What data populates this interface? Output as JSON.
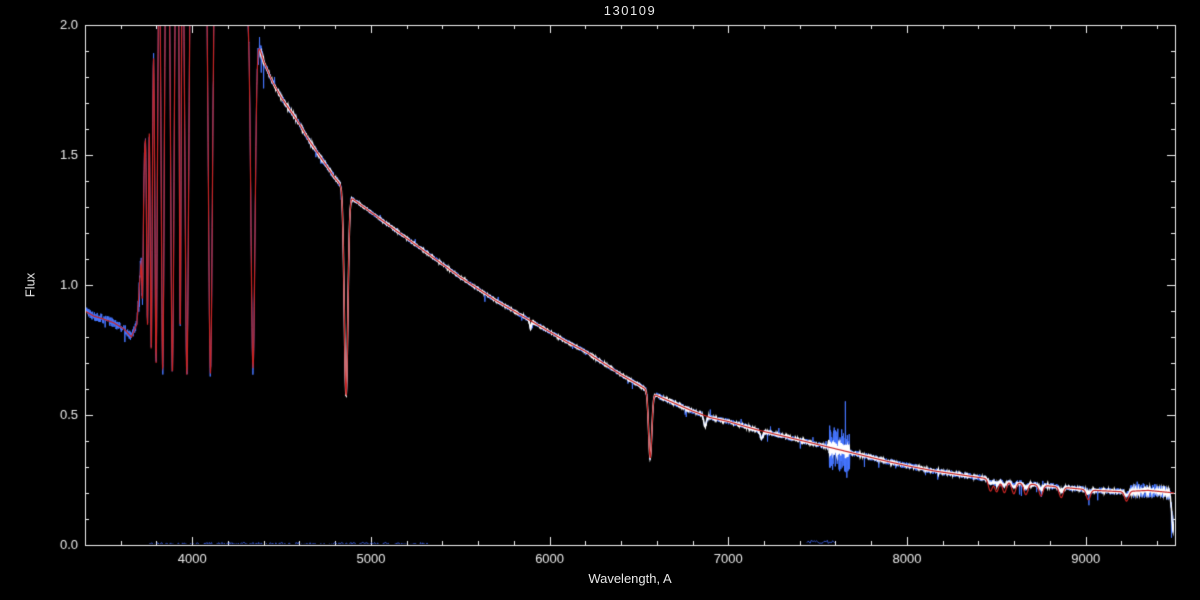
{
  "chart_data": {
    "type": "line",
    "title": "130109",
    "xlabel": "Wavelength, A",
    "ylabel": "Flux",
    "xlim": [
      3400,
      9500
    ],
    "ylim": [
      0.0,
      2.0
    ],
    "xticks": [
      4000,
      5000,
      6000,
      7000,
      8000,
      9000
    ],
    "yticks": [
      0.0,
      0.5,
      1.0,
      1.5,
      2.0
    ],
    "x_minor_step": 200,
    "y_minor_step": 0.1,
    "background": "#000000",
    "axis_color": "#f2f2f2",
    "text_color": "#e8e8e8",
    "series": [
      {
        "name": "observed-spectrum-noisy",
        "color": "#4575ff",
        "role": "observed_noise"
      },
      {
        "name": "observed-spectrum-core",
        "color": "#ffffff",
        "role": "observed_core"
      },
      {
        "name": "model-fit",
        "color": "#c92525",
        "role": "model"
      }
    ],
    "continuum_points": [
      [
        3400,
        0.9
      ],
      [
        3450,
        0.88
      ],
      [
        3500,
        0.87
      ],
      [
        3560,
        0.855
      ],
      [
        3620,
        0.83
      ],
      [
        3660,
        0.8
      ],
      [
        3690,
        0.85
      ],
      [
        3710,
        1.05
      ],
      [
        3730,
        1.45
      ],
      [
        3750,
        1.85
      ],
      [
        3775,
        2.15
      ],
      [
        3800,
        2.35
      ],
      [
        3850,
        2.45
      ],
      [
        3950,
        2.5
      ],
      [
        4050,
        2.45
      ],
      [
        4150,
        2.38
      ],
      [
        4250,
        2.24
      ],
      [
        4320,
        2.05
      ],
      [
        4360,
        1.95
      ],
      [
        4400,
        1.86
      ],
      [
        4450,
        1.78
      ],
      [
        4500,
        1.72
      ],
      [
        4550,
        1.67
      ],
      [
        4600,
        1.62
      ],
      [
        4650,
        1.56
      ],
      [
        4700,
        1.51
      ],
      [
        4750,
        1.46
      ],
      [
        4800,
        1.41
      ],
      [
        4900,
        1.33
      ],
      [
        4950,
        1.305
      ],
      [
        5000,
        1.28
      ],
      [
        5100,
        1.23
      ],
      [
        5200,
        1.18
      ],
      [
        5300,
        1.13
      ],
      [
        5400,
        1.08
      ],
      [
        5500,
        1.03
      ],
      [
        5600,
        0.985
      ],
      [
        5700,
        0.94
      ],
      [
        5800,
        0.9
      ],
      [
        5900,
        0.86
      ],
      [
        6000,
        0.82
      ],
      [
        6100,
        0.78
      ],
      [
        6200,
        0.745
      ],
      [
        6300,
        0.7
      ],
      [
        6400,
        0.655
      ],
      [
        6500,
        0.615
      ],
      [
        6600,
        0.575
      ],
      [
        6700,
        0.545
      ],
      [
        6800,
        0.515
      ],
      [
        6900,
        0.49
      ],
      [
        7000,
        0.475
      ],
      [
        7150,
        0.445
      ],
      [
        7300,
        0.42
      ],
      [
        7450,
        0.395
      ],
      [
        7600,
        0.37
      ],
      [
        7750,
        0.345
      ],
      [
        7900,
        0.32
      ],
      [
        8000,
        0.305
      ],
      [
        8150,
        0.285
      ],
      [
        8300,
        0.27
      ],
      [
        8450,
        0.255
      ],
      [
        8600,
        0.24
      ],
      [
        8750,
        0.23
      ],
      [
        8900,
        0.22
      ],
      [
        9050,
        0.21
      ],
      [
        9200,
        0.205
      ],
      [
        9350,
        0.21
      ],
      [
        9500,
        0.2
      ]
    ],
    "absorption_lines": [
      {
        "center": 3722,
        "floor": 0.95,
        "sigma": 4
      },
      {
        "center": 3750,
        "floor": 0.85,
        "sigma": 5
      },
      {
        "center": 3771,
        "floor": 0.75,
        "sigma": 6
      },
      {
        "center": 3798,
        "floor": 0.7,
        "sigma": 7
      },
      {
        "center": 3835,
        "floor": 0.67,
        "sigma": 8
      },
      {
        "center": 3889,
        "floor": 0.66,
        "sigma": 9
      },
      {
        "center": 3933,
        "floor": 0.82,
        "sigma": 5
      },
      {
        "center": 3970,
        "floor": 0.655,
        "sigma": 10
      },
      {
        "center": 4102,
        "floor": 0.66,
        "sigma": 11
      },
      {
        "center": 4340,
        "floor": 0.68,
        "sigma": 11
      },
      {
        "center": 4861,
        "floor": 0.575,
        "sigma": 10
      },
      {
        "center": 6563,
        "floor": 0.335,
        "sigma": 9
      }
    ],
    "model_oscillations": {
      "centers": [
        8467,
        8502,
        8545,
        8598,
        8665,
        8750,
        8863,
        9015,
        9229
      ],
      "depth_frac": 0.18,
      "sigma": 11,
      "observed_frac": 0.35
    },
    "observed_only_lines": [
      {
        "center": 5893,
        "floor": 0.83,
        "sigma": 4
      },
      {
        "center": 6870,
        "floor": 0.455,
        "sigma": 7
      },
      {
        "center": 7186,
        "floor": 0.41,
        "sigma": 8
      },
      {
        "center": 9490,
        "floor": 0.06,
        "sigma": 8
      }
    ],
    "noise_regions": [
      {
        "from": 3400,
        "to": 3700,
        "amp": 0.018
      },
      {
        "from": 3700,
        "to": 4400,
        "amp": 0.028
      },
      {
        "from": 4400,
        "to": 4900,
        "amp": 0.013
      },
      {
        "from": 4900,
        "to": 6500,
        "amp": 0.009
      },
      {
        "from": 6500,
        "to": 7560,
        "amp": 0.011
      },
      {
        "from": 7560,
        "to": 7680,
        "amp": 0.085
      },
      {
        "from": 7680,
        "to": 9250,
        "amp": 0.012
      },
      {
        "from": 9250,
        "to": 9500,
        "amp": 0.028
      }
    ],
    "base_noise": 0.01,
    "white_overlay_from": 4380,
    "baseline_segments": [
      {
        "from": 3760,
        "to": 5330,
        "level": 0.004
      },
      {
        "from": 7440,
        "to": 7600,
        "level": 0.012
      }
    ],
    "seed": 42
  }
}
